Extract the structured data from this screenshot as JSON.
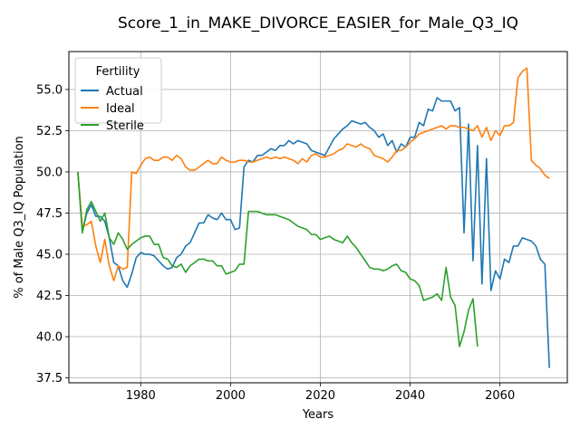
{
  "chart_data": {
    "type": "line",
    "title": "Score_1_in_MAKE_DIVORCE_EASIER_for_Male_Q3_IQ",
    "xlabel": "Years",
    "ylabel": "% of Male Q3_IQ Population",
    "xlim": [
      1964,
      2075
    ],
    "ylim": [
      37.2,
      57.3
    ],
    "xticks": [
      1980,
      2000,
      2020,
      2040,
      2060
    ],
    "yticks": [
      37.5,
      40.0,
      42.5,
      45.0,
      47.5,
      50.0,
      52.5,
      55.0
    ],
    "grid": true,
    "legend": {
      "title": "Fertility",
      "position": "top-left"
    },
    "series": [
      {
        "name": "Actual",
        "color": "#1f77b4",
        "points": [
          [
            1966,
            50.0
          ],
          [
            1967,
            46.4
          ],
          [
            1968,
            47.5
          ],
          [
            1969,
            48.0
          ],
          [
            1970,
            47.3
          ],
          [
            1971,
            47.3
          ],
          [
            1972,
            47.0
          ],
          [
            1973,
            46.0
          ],
          [
            1974,
            44.5
          ],
          [
            1975,
            44.3
          ],
          [
            1976,
            43.4
          ],
          [
            1977,
            43.0
          ],
          [
            1978,
            43.8
          ],
          [
            1979,
            44.8
          ],
          [
            1980,
            45.1
          ],
          [
            1981,
            45.0
          ],
          [
            1982,
            45.0
          ],
          [
            1983,
            44.9
          ],
          [
            1984,
            44.6
          ],
          [
            1985,
            44.3
          ],
          [
            1986,
            44.1
          ],
          [
            1987,
            44.2
          ],
          [
            1988,
            44.8
          ],
          [
            1989,
            45.0
          ],
          [
            1990,
            45.5
          ],
          [
            1991,
            45.7
          ],
          [
            1992,
            46.3
          ],
          [
            1993,
            46.9
          ],
          [
            1994,
            46.9
          ],
          [
            1995,
            47.4
          ],
          [
            1996,
            47.2
          ],
          [
            1997,
            47.1
          ],
          [
            1998,
            47.5
          ],
          [
            1999,
            47.1
          ],
          [
            2000,
            47.1
          ],
          [
            2001,
            46.5
          ],
          [
            2002,
            46.6
          ],
          [
            2003,
            50.3
          ],
          [
            2004,
            50.7
          ],
          [
            2005,
            50.6
          ],
          [
            2006,
            51.0
          ],
          [
            2007,
            51.0
          ],
          [
            2008,
            51.2
          ],
          [
            2009,
            51.4
          ],
          [
            2010,
            51.3
          ],
          [
            2011,
            51.6
          ],
          [
            2012,
            51.6
          ],
          [
            2013,
            51.9
          ],
          [
            2014,
            51.7
          ],
          [
            2015,
            51.9
          ],
          [
            2016,
            51.8
          ],
          [
            2017,
            51.7
          ],
          [
            2018,
            51.3
          ],
          [
            2019,
            51.2
          ],
          [
            2020,
            51.1
          ],
          [
            2021,
            51.0
          ],
          [
            2022,
            51.5
          ],
          [
            2023,
            52.0
          ],
          [
            2024,
            52.3
          ],
          [
            2025,
            52.6
          ],
          [
            2026,
            52.8
          ],
          [
            2027,
            53.1
          ],
          [
            2028,
            53.0
          ],
          [
            2029,
            52.9
          ],
          [
            2030,
            53.0
          ],
          [
            2031,
            52.7
          ],
          [
            2032,
            52.5
          ],
          [
            2033,
            52.1
          ],
          [
            2034,
            52.3
          ],
          [
            2035,
            51.6
          ],
          [
            2036,
            51.9
          ],
          [
            2037,
            51.2
          ],
          [
            2038,
            51.7
          ],
          [
            2039,
            51.5
          ],
          [
            2040,
            52.1
          ],
          [
            2041,
            52.1
          ],
          [
            2042,
            53.0
          ],
          [
            2043,
            52.8
          ],
          [
            2044,
            53.8
          ],
          [
            2045,
            53.7
          ],
          [
            2046,
            54.5
          ],
          [
            2047,
            54.3
          ],
          [
            2048,
            54.3
          ],
          [
            2049,
            54.3
          ],
          [
            2050,
            53.7
          ],
          [
            2051,
            53.9
          ],
          [
            2052,
            46.3
          ],
          [
            2053,
            52.9
          ],
          [
            2054,
            44.6
          ],
          [
            2055,
            51.6
          ],
          [
            2056,
            43.2
          ],
          [
            2057,
            50.8
          ],
          [
            2058,
            42.8
          ],
          [
            2059,
            44.0
          ],
          [
            2060,
            43.5
          ],
          [
            2061,
            44.7
          ],
          [
            2062,
            44.5
          ],
          [
            2063,
            45.5
          ],
          [
            2064,
            45.5
          ],
          [
            2065,
            46.0
          ],
          [
            2066,
            45.9
          ],
          [
            2067,
            45.8
          ],
          [
            2068,
            45.5
          ],
          [
            2069,
            44.7
          ],
          [
            2070,
            44.4
          ],
          [
            2071,
            38.1
          ]
        ]
      },
      {
        "name": "Ideal",
        "color": "#ff7f0e",
        "points": [
          [
            1966,
            50.0
          ],
          [
            1967,
            46.7
          ],
          [
            1968,
            46.8
          ],
          [
            1969,
            47.0
          ],
          [
            1970,
            45.5
          ],
          [
            1971,
            44.5
          ],
          [
            1972,
            45.9
          ],
          [
            1973,
            44.3
          ],
          [
            1974,
            43.4
          ],
          [
            1975,
            44.3
          ],
          [
            1976,
            44.1
          ],
          [
            1977,
            44.2
          ],
          [
            1978,
            50.0
          ],
          [
            1979,
            49.9
          ],
          [
            1980,
            50.4
          ],
          [
            1981,
            50.8
          ],
          [
            1982,
            50.9
          ],
          [
            1983,
            50.7
          ],
          [
            1984,
            50.7
          ],
          [
            1985,
            50.9
          ],
          [
            1986,
            50.9
          ],
          [
            1987,
            50.7
          ],
          [
            1988,
            51.0
          ],
          [
            1989,
            50.8
          ],
          [
            1990,
            50.3
          ],
          [
            1991,
            50.1
          ],
          [
            1992,
            50.1
          ],
          [
            1993,
            50.3
          ],
          [
            1994,
            50.5
          ],
          [
            1995,
            50.7
          ],
          [
            1996,
            50.5
          ],
          [
            1997,
            50.5
          ],
          [
            1998,
            50.9
          ],
          [
            1999,
            50.7
          ],
          [
            2000,
            50.6
          ],
          [
            2001,
            50.6
          ],
          [
            2002,
            50.7
          ],
          [
            2003,
            50.7
          ],
          [
            2004,
            50.6
          ],
          [
            2005,
            50.6
          ],
          [
            2006,
            50.7
          ],
          [
            2007,
            50.8
          ],
          [
            2008,
            50.9
          ],
          [
            2009,
            50.8
          ],
          [
            2010,
            50.9
          ],
          [
            2011,
            50.8
          ],
          [
            2012,
            50.9
          ],
          [
            2013,
            50.8
          ],
          [
            2014,
            50.7
          ],
          [
            2015,
            50.5
          ],
          [
            2016,
            50.8
          ],
          [
            2017,
            50.6
          ],
          [
            2018,
            51.0
          ],
          [
            2019,
            51.1
          ],
          [
            2020,
            50.9
          ],
          [
            2021,
            50.9
          ],
          [
            2022,
            51.0
          ],
          [
            2023,
            51.1
          ],
          [
            2024,
            51.3
          ],
          [
            2025,
            51.4
          ],
          [
            2026,
            51.7
          ],
          [
            2027,
            51.6
          ],
          [
            2028,
            51.5
          ],
          [
            2029,
            51.7
          ],
          [
            2030,
            51.5
          ],
          [
            2031,
            51.4
          ],
          [
            2032,
            51.0
          ],
          [
            2033,
            50.9
          ],
          [
            2034,
            50.8
          ],
          [
            2035,
            50.6
          ],
          [
            2036,
            50.9
          ],
          [
            2037,
            51.3
          ],
          [
            2038,
            51.3
          ],
          [
            2039,
            51.5
          ],
          [
            2040,
            51.8
          ],
          [
            2041,
            52.0
          ],
          [
            2042,
            52.3
          ],
          [
            2043,
            52.4
          ],
          [
            2044,
            52.5
          ],
          [
            2045,
            52.6
          ],
          [
            2046,
            52.7
          ],
          [
            2047,
            52.8
          ],
          [
            2048,
            52.6
          ],
          [
            2049,
            52.8
          ],
          [
            2050,
            52.8
          ],
          [
            2051,
            52.7
          ],
          [
            2052,
            52.7
          ],
          [
            2053,
            52.6
          ],
          [
            2054,
            52.5
          ],
          [
            2055,
            52.8
          ],
          [
            2056,
            52.1
          ],
          [
            2057,
            52.7
          ],
          [
            2058,
            51.9
          ],
          [
            2059,
            52.5
          ],
          [
            2060,
            52.2
          ],
          [
            2061,
            52.8
          ],
          [
            2062,
            52.8
          ],
          [
            2063,
            53.0
          ],
          [
            2064,
            55.7
          ],
          [
            2065,
            56.1
          ],
          [
            2066,
            56.3
          ],
          [
            2067,
            50.7
          ],
          [
            2068,
            50.4
          ],
          [
            2069,
            50.2
          ],
          [
            2070,
            49.8
          ],
          [
            2071,
            49.6
          ]
        ]
      },
      {
        "name": "Sterile",
        "color": "#2ca02c",
        "points": [
          [
            1966,
            50.0
          ],
          [
            1967,
            46.3
          ],
          [
            1968,
            47.7
          ],
          [
            1969,
            48.2
          ],
          [
            1970,
            47.6
          ],
          [
            1971,
            47.0
          ],
          [
            1972,
            47.5
          ],
          [
            1973,
            46.0
          ],
          [
            1974,
            45.6
          ],
          [
            1975,
            46.3
          ],
          [
            1976,
            45.9
          ],
          [
            1977,
            45.3
          ],
          [
            1978,
            45.6
          ],
          [
            1979,
            45.8
          ],
          [
            1980,
            46.0
          ],
          [
            1981,
            46.1
          ],
          [
            1982,
            46.1
          ],
          [
            1983,
            45.6
          ],
          [
            1984,
            45.6
          ],
          [
            1985,
            44.8
          ],
          [
            1986,
            44.7
          ],
          [
            1987,
            44.3
          ],
          [
            1988,
            44.2
          ],
          [
            1989,
            44.4
          ],
          [
            1990,
            43.9
          ],
          [
            1991,
            44.3
          ],
          [
            1992,
            44.5
          ],
          [
            1993,
            44.7
          ],
          [
            1994,
            44.7
          ],
          [
            1995,
            44.6
          ],
          [
            1996,
            44.6
          ],
          [
            1997,
            44.3
          ],
          [
            1998,
            44.3
          ],
          [
            1999,
            43.8
          ],
          [
            2000,
            43.9
          ],
          [
            2001,
            44.0
          ],
          [
            2002,
            44.4
          ],
          [
            2003,
            44.4
          ],
          [
            2004,
            47.6
          ],
          [
            2005,
            47.6
          ],
          [
            2006,
            47.6
          ],
          [
            2007,
            47.5
          ],
          [
            2008,
            47.4
          ],
          [
            2009,
            47.4
          ],
          [
            2010,
            47.4
          ],
          [
            2011,
            47.3
          ],
          [
            2012,
            47.2
          ],
          [
            2013,
            47.1
          ],
          [
            2014,
            46.9
          ],
          [
            2015,
            46.7
          ],
          [
            2016,
            46.6
          ],
          [
            2017,
            46.5
          ],
          [
            2018,
            46.2
          ],
          [
            2019,
            46.2
          ],
          [
            2020,
            45.9
          ],
          [
            2021,
            46.0
          ],
          [
            2022,
            46.1
          ],
          [
            2023,
            45.9
          ],
          [
            2024,
            45.8
          ],
          [
            2025,
            45.7
          ],
          [
            2026,
            46.1
          ],
          [
            2027,
            45.7
          ],
          [
            2028,
            45.4
          ],
          [
            2029,
            45.0
          ],
          [
            2030,
            44.6
          ],
          [
            2031,
            44.2
          ],
          [
            2032,
            44.1
          ],
          [
            2033,
            44.1
          ],
          [
            2034,
            44.0
          ],
          [
            2035,
            44.1
          ],
          [
            2036,
            44.3
          ],
          [
            2037,
            44.4
          ],
          [
            2038,
            44.0
          ],
          [
            2039,
            43.9
          ],
          [
            2040,
            43.5
          ],
          [
            2041,
            43.4
          ],
          [
            2042,
            43.1
          ],
          [
            2043,
            42.2
          ],
          [
            2044,
            42.3
          ],
          [
            2045,
            42.4
          ],
          [
            2046,
            42.6
          ],
          [
            2047,
            42.2
          ],
          [
            2048,
            44.2
          ],
          [
            2049,
            42.4
          ],
          [
            2050,
            41.9
          ],
          [
            2051,
            39.4
          ],
          [
            2052,
            40.3
          ],
          [
            2053,
            41.6
          ],
          [
            2054,
            42.3
          ],
          [
            2055,
            39.4
          ]
        ]
      }
    ]
  }
}
